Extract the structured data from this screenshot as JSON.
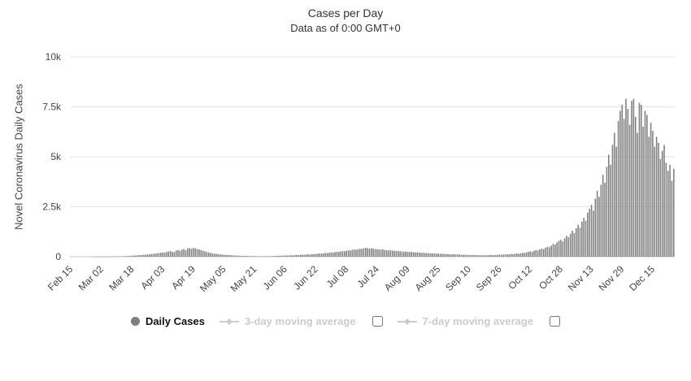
{
  "header": {
    "title": "Cases per Day",
    "subtitle": "Data as of 0:00 GMT+0"
  },
  "y_axis": {
    "label": "Novel Coronavirus Daily Cases"
  },
  "legend": {
    "daily": {
      "label": "Daily Cases",
      "enabled": true
    },
    "ma3": {
      "label": "3-day moving average",
      "enabled": false,
      "checkbox_checked": false
    },
    "ma7": {
      "label": "7-day moving average",
      "enabled": false,
      "checkbox_checked": false
    }
  },
  "colors": {
    "bar": "#7f7f7f",
    "grid": "#e6e6e6",
    "disabled_legend": "#cccccc",
    "title_text": "#333333",
    "tick_text": "#444444"
  },
  "chart_data": {
    "type": "bar",
    "title": "Cases per Day",
    "subtitle": "Data as of 0:00 GMT+0",
    "xlabel": "",
    "ylabel": "Novel Coronavirus Daily Cases",
    "ylim": [
      0,
      10000
    ],
    "grid": true,
    "legend_position": "bottom",
    "y_ticks": [
      {
        "value": 0,
        "label": "0"
      },
      {
        "value": 2500,
        "label": "2.5k"
      },
      {
        "value": 5000,
        "label": "5k"
      },
      {
        "value": 7500,
        "label": "7.5k"
      },
      {
        "value": 10000,
        "label": "10k"
      }
    ],
    "x_tick_labels": [
      "Feb 15",
      "Mar 02",
      "Mar 18",
      "Apr 03",
      "Apr 19",
      "May 05",
      "May 21",
      "Jun 06",
      "Jun 22",
      "Jul 08",
      "Jul 24",
      "Aug 09",
      "Aug 25",
      "Sep 10",
      "Sep 26",
      "Oct 12",
      "Oct 28",
      "Nov 13",
      "Nov 29",
      "Dec 15"
    ],
    "x_tick_interval": 16,
    "series": [
      {
        "name": "Daily Cases",
        "values": [
          0,
          0,
          0,
          0,
          0,
          0,
          0,
          0,
          0,
          0,
          0,
          1,
          0,
          1,
          2,
          2,
          3,
          2,
          5,
          4,
          7,
          9,
          8,
          12,
          14,
          18,
          21,
          24,
          28,
          33,
          38,
          44,
          50,
          57,
          65,
          72,
          78,
          85,
          93,
          102,
          110,
          120,
          131,
          142,
          155,
          168,
          182,
          197,
          215,
          198,
          240,
          260,
          285,
          245,
          230,
          310,
          330,
          295,
          350,
          380,
          320,
          410,
          430,
          395,
          440,
          420,
          390,
          360,
          330,
          300,
          270,
          240,
          215,
          190,
          170,
          155,
          140,
          128,
          115,
          105,
          98,
          90,
          84,
          78,
          72,
          66,
          60,
          55,
          50,
          46,
          42,
          39,
          36,
          34,
          32,
          30,
          28,
          26,
          24,
          23,
          22,
          24,
          26,
          28,
          30,
          33,
          36,
          40,
          44,
          48,
          52,
          57,
          62,
          57,
          68,
          74,
          66,
          80,
          88,
          82,
          95,
          102,
          96,
          110,
          118,
          108,
          125,
          132,
          140,
          150,
          162,
          155,
          175,
          188,
          180,
          200,
          215,
          205,
          230,
          248,
          240,
          265,
          285,
          272,
          300,
          320,
          310,
          340,
          360,
          350,
          380,
          400,
          390,
          420,
          445,
          430,
          410,
          425,
          405,
          385,
          375,
          360,
          350,
          365,
          340,
          330,
          315,
          325,
          305,
          295,
          280,
          290,
          270,
          260,
          250,
          255,
          245,
          235,
          240,
          225,
          215,
          220,
          205,
          195,
          200,
          185,
          178,
          182,
          170,
          165,
          168,
          158,
          152,
          145,
          148,
          138,
          132,
          135,
          125,
          120,
          122,
          112,
          108,
          110,
          100,
          96,
          98,
          90,
          88,
          82,
          85,
          78,
          75,
          80,
          72,
          70,
          74,
          68,
          72,
          78,
          82,
          76,
          88,
          95,
          100,
          94,
          108,
          115,
          110,
          125,
          135,
          128,
          148,
          160,
          152,
          175,
          195,
          185,
          220,
          245,
          270,
          255,
          300,
          330,
          315,
          365,
          400,
          380,
          450,
          500,
          470,
          560,
          640,
          600,
          720,
          800,
          850,
          760,
          920,
          1050,
          980,
          1150,
          1300,
          1180,
          1420,
          1600,
          1450,
          1750,
          1950,
          1800,
          2200,
          2400,
          2600,
          2300,
          2900,
          3300,
          3000,
          3600,
          4100,
          3700,
          4500,
          5100,
          4600,
          5600,
          6200,
          5500,
          6800,
          7300,
          7600,
          6900,
          7900,
          7400,
          6600,
          7800,
          7900,
          7000,
          6200,
          7700,
          7600,
          6500,
          7300,
          7100,
          6000,
          6700,
          6300,
          5500,
          6000,
          5700,
          4900,
          5300,
          5600,
          4700,
          4300,
          4600,
          3800,
          4400
        ]
      }
    ]
  }
}
